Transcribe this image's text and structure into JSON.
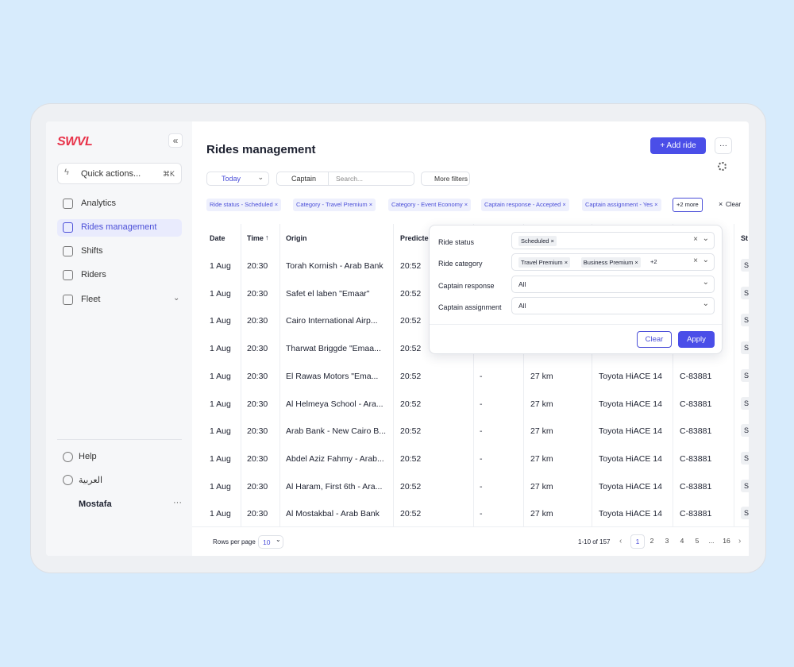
{
  "brand": "SWVL",
  "sidebar": {
    "quick_actions": "Quick actions...",
    "shortcut": "⌘K",
    "nav": [
      "Analytics",
      "Rides management",
      "Shifts",
      "Riders",
      "Fleet"
    ],
    "footer": [
      "Help",
      "العربية"
    ],
    "user": "Mostafa"
  },
  "header": {
    "title": "Rides management",
    "add_button": "Add ride"
  },
  "toolbar": {
    "date": "Today",
    "search_scope": "Captain",
    "search_placeholder": "Search...",
    "more_filters": "More filters"
  },
  "chips": [
    "Ride status - Scheduled",
    "Category - Travel Premium",
    "Category - Event Economy",
    "Captain response - Accepted",
    "Captain assignment - Yes"
  ],
  "more_chips": "+2 more",
  "clear": "Clear",
  "table": {
    "columns": [
      "Date",
      "Time",
      "Origin",
      "Predicted",
      null,
      null,
      null,
      null,
      "St"
    ],
    "rows": [
      [
        "1 Aug",
        "20:30",
        "Torah Kornish - Arab Bank",
        "20:52",
        null,
        null,
        null,
        null,
        "S"
      ],
      [
        "1 Aug",
        "20:30",
        "Safet el laben  \"Emaar\"",
        "20:52",
        null,
        null,
        null,
        null,
        "S"
      ],
      [
        "1 Aug",
        "20:30",
        "Cairo International Airp...",
        "20:52",
        null,
        null,
        null,
        null,
        "S"
      ],
      [
        "1 Aug",
        "20:30",
        "Tharwat Briggde \"Emaa...",
        "20:52",
        null,
        null,
        null,
        null,
        "S"
      ],
      [
        "1 Aug",
        "20:30",
        "El Rawas Motors  \"Ema...",
        "20:52",
        "-",
        "27 km",
        "Toyota HiACE 14",
        "C-83881",
        "S"
      ],
      [
        "1 Aug",
        "20:30",
        "Al Helmeya School - Ara...",
        "20:52",
        "-",
        "27 km",
        "Toyota HiACE 14",
        "C-83881",
        "S"
      ],
      [
        "1 Aug",
        "20:30",
        "Arab Bank - New Cairo B...",
        "20:52",
        "-",
        "27 km",
        "Toyota HiACE 14",
        "C-83881",
        "S"
      ],
      [
        "1 Aug",
        "20:30",
        "Abdel Aziz Fahmy - Arab...",
        "20:52",
        "-",
        "27 km",
        "Toyota HiACE 14",
        "C-83881",
        "S"
      ],
      [
        "1 Aug",
        "20:30",
        "Al Haram, First 6th - Ara...",
        "20:52",
        "-",
        "27 km",
        "Toyota HiACE 14",
        "C-83881",
        "S"
      ],
      [
        "1 Aug",
        "20:30",
        "Al Mostakbal - Arab Bank",
        "20:52",
        "-",
        "27 km",
        "Toyota HiACE 14",
        "C-83881",
        "S"
      ]
    ]
  },
  "pagination": {
    "rows_per_page": "Rows per page",
    "page_size": "10",
    "range": "1-10 of 157",
    "pages": [
      "1",
      "2",
      "3",
      "4",
      "5",
      "...",
      "16"
    ]
  },
  "filter_panel": {
    "filters": [
      {
        "label": "Ride status",
        "tags": [
          "Scheduled"
        ]
      },
      {
        "label": "Ride category",
        "tags": [
          "Travel Premium",
          "Business Premium"
        ],
        "extra": "+2"
      },
      {
        "label": "Captain response",
        "value": "All"
      },
      {
        "label": "Captain assignment",
        "value": "All"
      }
    ],
    "clear": "Clear",
    "apply": "Apply"
  }
}
